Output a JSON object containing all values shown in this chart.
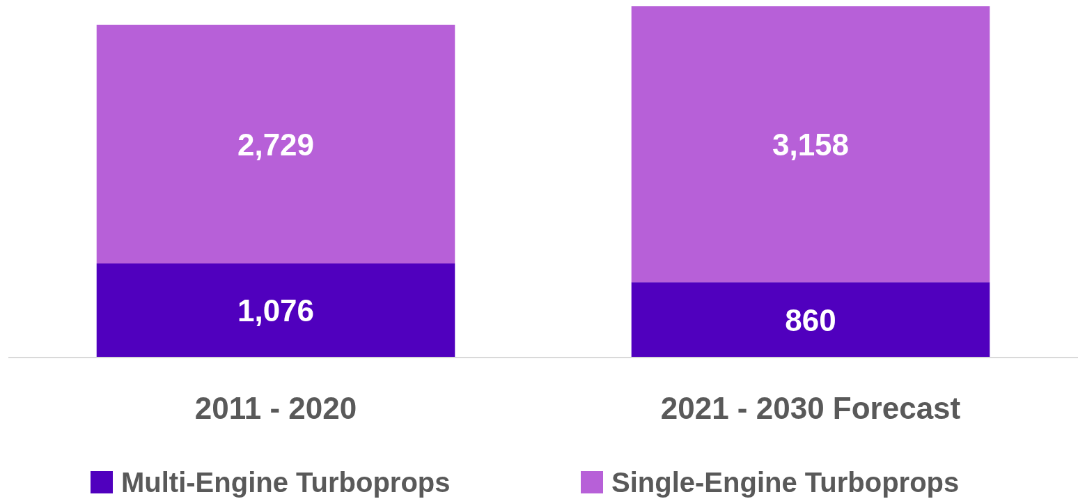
{
  "chart_data": {
    "type": "bar",
    "stacked": true,
    "categories": [
      "2011 - 2020",
      "2021 - 2030 Forecast"
    ],
    "series": [
      {
        "name": "Multi-Engine Turboprops",
        "color": "#5000be",
        "values": [
          1076,
          860
        ],
        "value_labels": [
          "1,076",
          "860"
        ]
      },
      {
        "name": "Single-Engine Turboprops",
        "color": "#b760d8",
        "values": [
          2729,
          3158
        ],
        "value_labels": [
          "2,729",
          "3,158"
        ]
      }
    ],
    "legend": "bottom"
  }
}
